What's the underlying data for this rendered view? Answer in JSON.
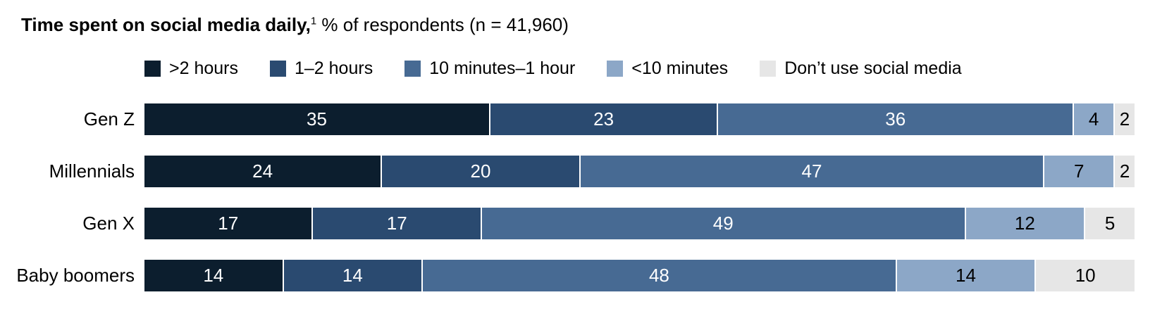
{
  "title": {
    "bold": "Time spent on social media daily,",
    "superscript": "1",
    "regular": " % of respondents (n = 41,960)"
  },
  "colors": {
    "seg_gt2h": "#0c1e2e",
    "seg_1to2h": "#2a4a70",
    "seg_10m1h": "#476a93",
    "seg_lt10m": "#8ca7c7",
    "seg_none": "#e6e6e6",
    "label_on_dark": "#ffffff",
    "label_on_light": "#000000",
    "background": "#ffffff"
  },
  "legend": [
    {
      "label": ">2 hours",
      "color": "#0c1e2e"
    },
    {
      "label": "1–2 hours",
      "color": "#2a4a70"
    },
    {
      "label": "10 minutes–1 hour",
      "color": "#476a93"
    },
    {
      "label": "<10 minutes",
      "color": "#8ca7c7"
    },
    {
      "label": "Don’t use social media",
      "color": "#e6e6e6"
    }
  ],
  "chart_data": {
    "type": "bar",
    "orientation": "horizontal",
    "stacked": true,
    "title": "Time spent on social media daily, % of respondents (n = 41,960)",
    "footnote_marker": "1",
    "categories": [
      "Gen Z",
      "Millennials",
      "Gen X",
      "Baby boomers"
    ],
    "series": [
      {
        "name": ">2 hours",
        "color": "#0c1e2e",
        "text_color": "#ffffff",
        "values": [
          35,
          24,
          17,
          14
        ]
      },
      {
        "name": "1–2 hours",
        "color": "#2a4a70",
        "text_color": "#ffffff",
        "values": [
          23,
          20,
          17,
          14
        ]
      },
      {
        "name": "10 minutes–1 hour",
        "color": "#476a93",
        "text_color": "#ffffff",
        "values": [
          36,
          47,
          49,
          48
        ]
      },
      {
        "name": "<10 minutes",
        "color": "#8ca7c7",
        "text_color": "#000000",
        "values": [
          4,
          7,
          12,
          14
        ]
      },
      {
        "name": "Don’t use social media",
        "color": "#e6e6e6",
        "text_color": "#000000",
        "values": [
          2,
          2,
          5,
          10
        ]
      }
    ],
    "xlim": [
      0,
      100
    ],
    "grid": false,
    "legend_position": "top",
    "value_labels": "inside-center",
    "axis_ticks": "none"
  }
}
